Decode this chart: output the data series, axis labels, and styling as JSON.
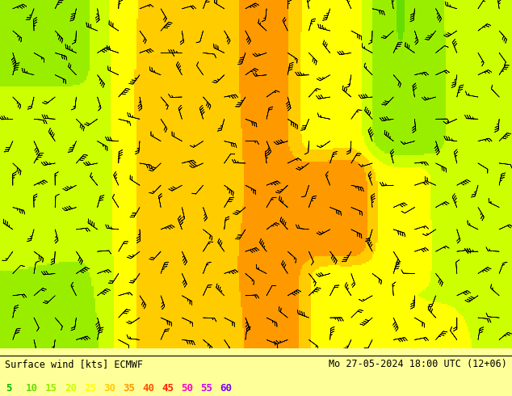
{
  "title_left": "Surface wind [kts] ECMWF",
  "title_right": "Mo 27-05-2024 18:00 UTC (12+06)",
  "colorbar_values": [
    5,
    10,
    15,
    20,
    25,
    30,
    35,
    40,
    45,
    50,
    55,
    60
  ],
  "colorbar_colors": [
    "#00bb00",
    "#66dd00",
    "#99ee00",
    "#ccff00",
    "#ffff00",
    "#ffcc00",
    "#ff9900",
    "#ff5500",
    "#ff2200",
    "#ff00cc",
    "#cc00ff",
    "#7700ff"
  ],
  "bg_color": "#ffff99",
  "fig_width": 6.34,
  "fig_height": 4.9,
  "dpi": 100
}
